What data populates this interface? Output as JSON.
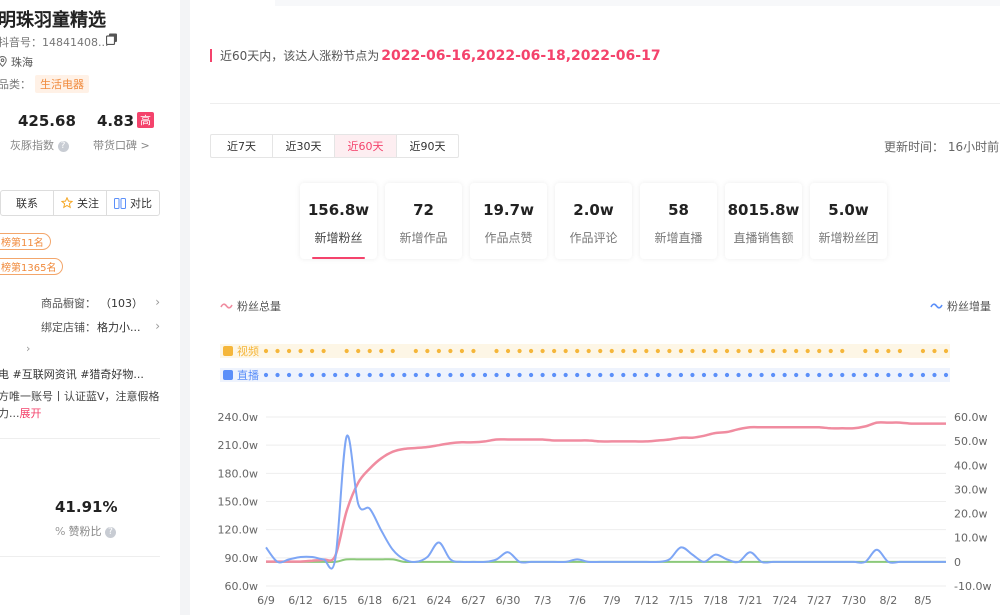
{
  "profile": {
    "name": "明珠羽童精选",
    "douyin_id": "抖音号：14841408...",
    "location": "珠海",
    "category_label": "品类：",
    "category_tag": "生活电器",
    "gray_index": {
      "value": "425.68",
      "label": "灰豚指数"
    },
    "reputation": {
      "value": "4.83",
      "badge": "高",
      "label": "带货口碑 >"
    },
    "buttons": {
      "contact": "联系",
      "follow": "关注",
      "compare": "对比"
    },
    "ranks": [
      "榜第11名",
      "榜第1365名"
    ],
    "showcase": {
      "label": "商品橱窗：",
      "value": "（103）"
    },
    "shop": {
      "label": "绑定店铺：",
      "value": "格力小..."
    },
    "tags_line": "电  #互联网资讯  #猎奇好物...",
    "description": "方唯一账号丨认证蓝V，注意假格力...",
    "expand": "展开",
    "like_fan_ratio": {
      "value": "41.91%",
      "label": "赞粉比"
    }
  },
  "notice": {
    "text": "近60天内，该达人涨粉节点为",
    "dates": "2022-06-16,2022-06-18,2022-06-17"
  },
  "tabs": [
    {
      "label": "近7天",
      "active": false
    },
    {
      "label": "近30天",
      "active": false
    },
    {
      "label": "近60天",
      "active": true
    },
    {
      "label": "近90天",
      "active": false
    }
  ],
  "update_time": "更新时间：  16小时前",
  "stat_cards": [
    {
      "value": "156.8w",
      "label": "新增粉丝",
      "active": true
    },
    {
      "value": "72",
      "label": "新增作品",
      "active": false
    },
    {
      "value": "19.7w",
      "label": "作品点赞",
      "active": false
    },
    {
      "value": "2.0w",
      "label": "作品评论",
      "active": false
    },
    {
      "value": "58",
      "label": "新增直播",
      "active": false
    },
    {
      "value": "8015.8w",
      "label": "直播销售额",
      "active": false
    },
    {
      "value": "5.0w",
      "label": "新增粉丝团",
      "active": false
    }
  ],
  "legend": {
    "left": "粉丝总量",
    "right": "粉丝增量"
  },
  "colors": {
    "accent": "#f4436c",
    "video": "#f5b63a",
    "live": "#5b8ff9",
    "total": "#f08ca0",
    "increment": "#7ea6f5",
    "flat": "#8cc97a"
  },
  "rows": {
    "video_label": "视频",
    "live_label": "直播"
  },
  "chart_data": {
    "type": "line",
    "x_ticks": [
      "6/9",
      "6/12",
      "6/15",
      "6/18",
      "6/21",
      "6/24",
      "6/27",
      "6/30",
      "7/3",
      "7/6",
      "7/9",
      "7/12",
      "7/15",
      "7/18",
      "7/21",
      "7/24",
      "7/27",
      "7/30",
      "8/2",
      "8/5"
    ],
    "y_left_ticks": [
      "60.0w",
      "90.0w",
      "120.0w",
      "150.0w",
      "180.0w",
      "210.0w",
      "240.0w"
    ],
    "y_right_ticks": [
      "-10.0w",
      "0",
      "10.0w",
      "20.0w",
      "30.0w",
      "40.0w",
      "50.0w",
      "60.0w"
    ],
    "y_left_range": [
      60,
      240
    ],
    "y_right_range": [
      -10,
      60
    ],
    "x": [
      "6/9",
      "6/10",
      "6/11",
      "6/12",
      "6/13",
      "6/14",
      "6/15",
      "6/16",
      "6/17",
      "6/18",
      "6/19",
      "6/20",
      "6/21",
      "6/22",
      "6/23",
      "6/24",
      "6/25",
      "6/26",
      "6/27",
      "6/28",
      "6/29",
      "6/30",
      "7/1",
      "7/2",
      "7/3",
      "7/4",
      "7/5",
      "7/6",
      "7/7",
      "7/8",
      "7/9",
      "7/10",
      "7/11",
      "7/12",
      "7/13",
      "7/14",
      "7/15",
      "7/16",
      "7/17",
      "7/18",
      "7/19",
      "7/20",
      "7/21",
      "7/22",
      "7/23",
      "7/24",
      "7/25",
      "7/26",
      "7/27",
      "7/28",
      "7/29",
      "7/30",
      "7/31",
      "8/1",
      "8/2",
      "8/3",
      "8/4",
      "8/5",
      "8/6",
      "8/7"
    ],
    "series": [
      {
        "name": "粉丝总量",
        "axis": "left",
        "values": [
          86,
          86,
          86,
          86,
          87,
          88,
          92,
          140,
          170,
          185,
          196,
          203,
          206,
          207,
          208,
          210,
          212,
          213,
          213,
          214,
          216,
          216,
          216,
          216,
          216,
          215,
          215,
          215,
          215,
          214,
          214,
          214,
          214,
          214,
          215,
          216,
          218,
          218,
          220,
          223,
          224,
          227,
          229,
          229,
          229,
          229,
          229,
          229,
          229,
          228,
          228,
          228,
          230,
          234,
          234,
          234,
          233,
          233,
          233,
          233
        ]
      },
      {
        "name": "粉丝增量",
        "axis": "right",
        "values": [
          6,
          0,
          1,
          2,
          2,
          1,
          1,
          52,
          24,
          22,
          13,
          5,
          1,
          0,
          2,
          8,
          1,
          0,
          0,
          0,
          1,
          4,
          0,
          0,
          0,
          0,
          0,
          1,
          0,
          0,
          0,
          0,
          0,
          0,
          0,
          1,
          6,
          3,
          0,
          3,
          1,
          0,
          4,
          0,
          0,
          0,
          0,
          0,
          0,
          0,
          0,
          0,
          0,
          5,
          0,
          0,
          0,
          0,
          0,
          0
        ]
      },
      {
        "name": "",
        "axis": "right",
        "values": [
          0,
          0,
          0,
          0,
          0,
          0,
          0,
          1,
          1,
          1,
          1,
          1,
          0,
          0,
          0,
          0,
          0,
          0,
          0,
          0,
          0,
          0,
          0,
          0,
          0,
          0,
          0,
          0,
          0,
          0,
          0,
          0,
          0,
          0,
          0,
          0,
          0,
          0,
          0,
          0,
          0,
          0,
          0,
          0,
          0,
          0,
          0,
          0,
          0,
          0,
          0,
          0,
          0,
          0,
          0,
          0,
          0,
          0,
          0,
          0
        ]
      }
    ],
    "video_days": [
      1,
      1,
      1,
      1,
      1,
      1,
      0,
      1,
      1,
      1,
      1,
      1,
      0,
      1,
      1,
      1,
      1,
      1,
      1,
      0,
      1,
      1,
      1,
      1,
      1,
      1,
      1,
      1,
      1,
      1,
      1,
      1,
      1,
      1,
      1,
      1,
      1,
      1,
      1,
      1,
      1,
      1,
      1,
      1,
      1,
      1,
      1,
      1,
      1,
      1,
      1,
      0,
      1,
      1,
      1,
      1,
      0,
      1,
      1,
      1
    ],
    "live_days": [
      1,
      1,
      1,
      1,
      1,
      1,
      1,
      1,
      1,
      1,
      1,
      1,
      1,
      1,
      1,
      1,
      1,
      1,
      1,
      1,
      1,
      1,
      1,
      1,
      1,
      1,
      1,
      1,
      1,
      1,
      1,
      1,
      1,
      1,
      1,
      1,
      1,
      1,
      1,
      1,
      1,
      1,
      1,
      1,
      1,
      1,
      1,
      1,
      1,
      1,
      1,
      1,
      1,
      1,
      1,
      1,
      1,
      1,
      1,
      1
    ]
  }
}
